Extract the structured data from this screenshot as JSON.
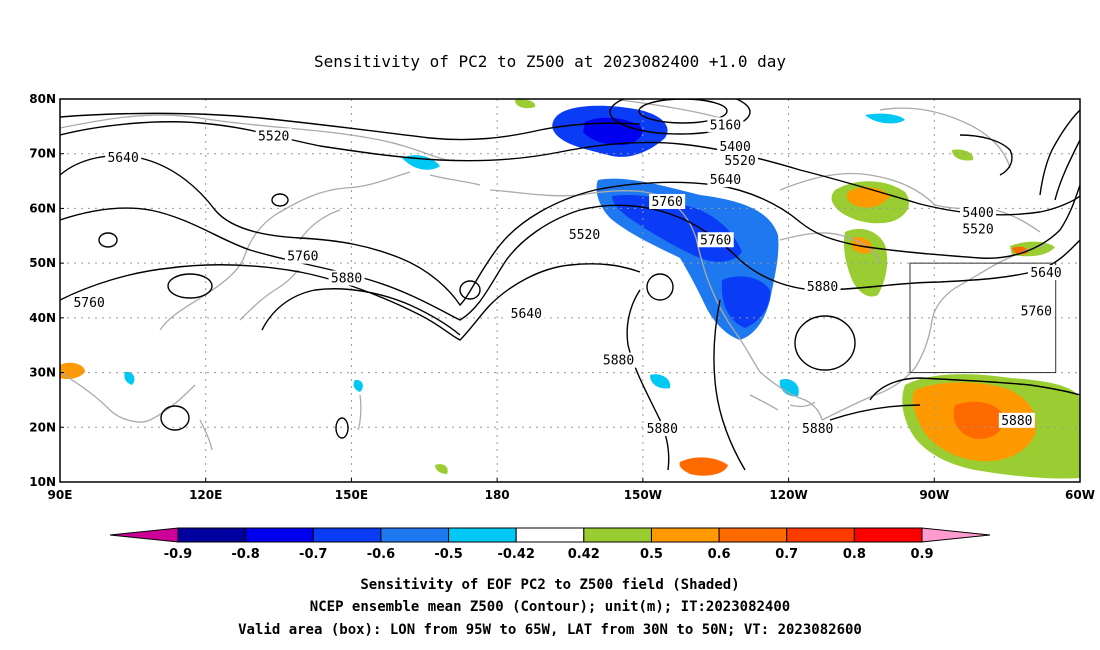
{
  "title": "Sensitivity of PC2 to Z500 at 2023082400 +1.0 day",
  "map": {
    "lon_range": [
      90,
      300
    ],
    "lat_range": [
      10,
      80
    ],
    "lon_ticks": [
      "90E",
      "120E",
      "150E",
      "180",
      "150W",
      "120W",
      "90W",
      "60W"
    ],
    "lat_ticks": [
      "10N",
      "20N",
      "30N",
      "40N",
      "50N",
      "60N",
      "70N",
      "80N"
    ],
    "gridlines": "dotted",
    "valid_box": {
      "lon": [
        265,
        295
      ],
      "lat": [
        30,
        50
      ]
    },
    "contour_labels": [
      {
        "text": "5520",
        "lon": 134,
        "lat": 73
      },
      {
        "text": "5640",
        "lon": 103,
        "lat": 69
      },
      {
        "text": "5160",
        "lon": 227,
        "lat": 75
      },
      {
        "text": "5400",
        "lon": 229,
        "lat": 71
      },
      {
        "text": "5520",
        "lon": 230,
        "lat": 68.5
      },
      {
        "text": "5640",
        "lon": 227,
        "lat": 65
      },
      {
        "text": "5760",
        "lon": 215,
        "lat": 61
      },
      {
        "text": "5520",
        "lon": 198,
        "lat": 55
      },
      {
        "text": "5760",
        "lon": 225,
        "lat": 54
      },
      {
        "text": "5760",
        "lon": 140,
        "lat": 51
      },
      {
        "text": "5880",
        "lon": 149,
        "lat": 47
      },
      {
        "text": "5760",
        "lon": 96,
        "lat": 42.5
      },
      {
        "text": "5640",
        "lon": 186,
        "lat": 40.5
      },
      {
        "text": "5880",
        "lon": 247,
        "lat": 45.5
      },
      {
        "text": "5400",
        "lon": 279,
        "lat": 59
      },
      {
        "text": "5520",
        "lon": 279,
        "lat": 56
      },
      {
        "text": "5640",
        "lon": 293,
        "lat": 48
      },
      {
        "text": "5760",
        "lon": 291,
        "lat": 41
      },
      {
        "text": "5880",
        "lon": 205,
        "lat": 32
      },
      {
        "text": "5880",
        "lon": 214,
        "lat": 19.5
      },
      {
        "text": "5880",
        "lon": 246,
        "lat": 19.5
      },
      {
        "text": "5880",
        "lon": 287,
        "lat": 21
      }
    ]
  },
  "colorbar": {
    "labels": [
      "-0.9",
      "-0.8",
      "-0.7",
      "-0.6",
      "-0.5",
      "-0.42",
      "0.42",
      "0.5",
      "0.6",
      "0.7",
      "0.8",
      "0.9"
    ],
    "colors": [
      "#00009f",
      "#0000ee",
      "#0a3cf5",
      "#1e78f0",
      "#00c8f5",
      "#ffffff",
      "#9acd32",
      "#ff9900",
      "#ff6a00",
      "#ff3c00",
      "#ff0000"
    ],
    "low_extend": "#cc0099",
    "high_extend": "#ff9ccf"
  },
  "footer": {
    "line1": "Sensitivity of EOF PC2 to Z500 field (Shaded)",
    "line2": "NCEP ensemble mean Z500 (Contour); unit(m); IT:2023082400",
    "line3": "Valid area (box): LON from 95W to 65W, LAT from 30N to 50N; VT: 2023082600"
  }
}
